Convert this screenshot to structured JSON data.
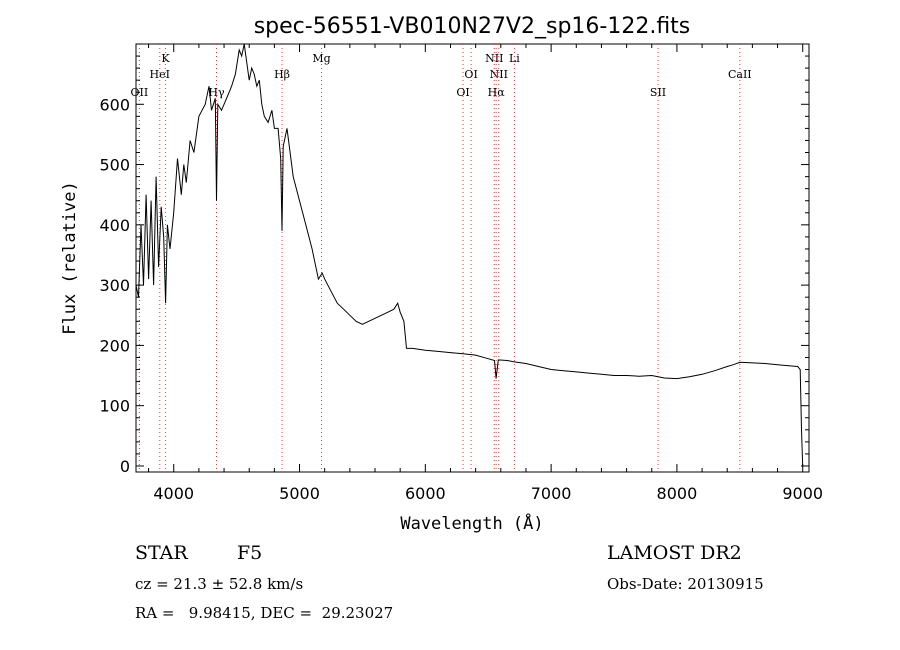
{
  "chart_data": {
    "type": "line",
    "title": "spec-56551-VB010N27V2_sp16-122.fits",
    "xlabel": "Wavelength (Å)",
    "ylabel": "Flux (relative)",
    "xlim": [
      3700,
      9050
    ],
    "ylim": [
      -10,
      700
    ],
    "xticks": [
      4000,
      5000,
      6000,
      7000,
      8000,
      9000
    ],
    "yticks": [
      0,
      100,
      200,
      300,
      400,
      500,
      600
    ],
    "grid": false,
    "series": [
      {
        "color": "#000000",
        "x": [
          3700,
          3720,
          3740,
          3760,
          3780,
          3800,
          3820,
          3840,
          3860,
          3880,
          3900,
          3920,
          3935,
          3950,
          3970,
          4000,
          4030,
          4060,
          4080,
          4100,
          4130,
          4160,
          4200,
          4250,
          4280,
          4300,
          4330,
          4340,
          4350,
          4380,
          4420,
          4460,
          4490,
          4520,
          4540,
          4560,
          4580,
          4600,
          4620,
          4640,
          4660,
          4680,
          4700,
          4720,
          4750,
          4780,
          4800,
          4830,
          4850,
          4861,
          4870,
          4900,
          4950,
          5000,
          5050,
          5100,
          5150,
          5180,
          5200,
          5250,
          5300,
          5350,
          5400,
          5450,
          5500,
          5550,
          5600,
          5650,
          5700,
          5750,
          5780,
          5800,
          5830,
          5850,
          5870,
          5900,
          6000,
          6100,
          6200,
          6300,
          6400,
          6500,
          6550,
          6563,
          6580,
          6650,
          6700,
          6800,
          6900,
          7000,
          7100,
          7200,
          7300,
          7400,
          7500,
          7600,
          7700,
          7800,
          7900,
          8000,
          8100,
          8200,
          8300,
          8400,
          8450,
          8500,
          8600,
          8700,
          8800,
          8900,
          8960,
          8980,
          8990,
          9000
        ],
        "y": [
          300,
          280,
          400,
          300,
          450,
          310,
          440,
          300,
          480,
          330,
          430,
          380,
          270,
          400,
          360,
          420,
          510,
          450,
          500,
          470,
          540,
          520,
          580,
          600,
          630,
          590,
          610,
          440,
          600,
          590,
          610,
          630,
          650,
          690,
          680,
          700,
          670,
          640,
          660,
          650,
          630,
          640,
          600,
          580,
          570,
          590,
          560,
          560,
          510,
          390,
          530,
          560,
          480,
          440,
          400,
          360,
          310,
          320,
          310,
          290,
          270,
          260,
          250,
          240,
          235,
          240,
          245,
          250,
          255,
          260,
          270,
          255,
          240,
          195,
          195,
          195,
          192,
          190,
          188,
          186,
          184,
          178,
          175,
          145,
          176,
          175,
          173,
          170,
          165,
          160,
          158,
          156,
          154,
          152,
          150,
          150,
          149,
          150,
          146,
          145,
          148,
          152,
          158,
          165,
          168,
          172,
          171,
          170,
          168,
          166,
          165,
          160,
          60,
          0
        ]
      }
    ],
    "annotations": [
      {
        "label": "OII",
        "x": 3727,
        "row": 3
      },
      {
        "label": "K",
        "x": 3934,
        "row": 1
      },
      {
        "label": "HeI",
        "x": 3889,
        "row": 2
      },
      {
        "label": "Hγ",
        "x": 4340,
        "row": 3
      },
      {
        "label": "Hβ",
        "x": 4861,
        "row": 2
      },
      {
        "label": "Mg",
        "x": 5175,
        "row": 1
      },
      {
        "label": "OI",
        "x": 6300,
        "row": 3
      },
      {
        "label": "OI",
        "x": 6364,
        "row": 2
      },
      {
        "label": "NII",
        "x": 6548,
        "row": 1
      },
      {
        "label": "Li",
        "x": 6708,
        "row": 1
      },
      {
        "label": "NII",
        "x": 6584,
        "row": 2
      },
      {
        "label": "Hα",
        "x": 6563,
        "row": 3
      },
      {
        "label": "SII",
        "x": 7850,
        "row": 3
      },
      {
        "label": "CaII",
        "x": 8500,
        "row": 2
      }
    ]
  },
  "footer": {
    "class_label": "STAR",
    "subclass": "F5",
    "survey": "LAMOST DR2",
    "cz": "cz = 21.3 ± 52.8 km/s",
    "obs_date": "Obs-Date: 20130915",
    "coords": "RA =   9.98415, DEC =  29.23027"
  }
}
